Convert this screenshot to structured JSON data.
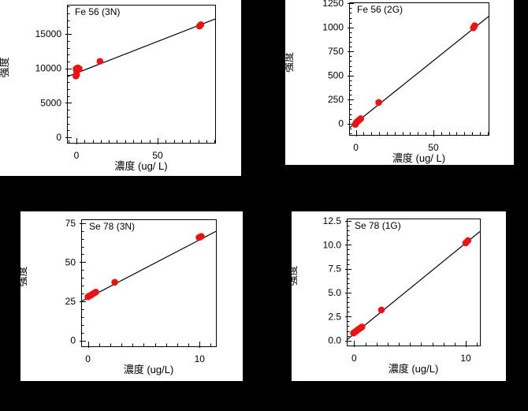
{
  "window": {
    "background": "#000000",
    "panel_background": "#ffffff"
  },
  "colors": {
    "marker": "#ee1111",
    "fit_line": "#000000",
    "frame": "#000000",
    "text": "#000000"
  },
  "chart_data": [
    {
      "id": "fe56-3n",
      "type": "scatter",
      "title": "Fe 56 (3N)",
      "xlabel": "濃度 (ug/ L)",
      "ylabel": "強度",
      "xlim": [
        -5.8,
        85.4
      ],
      "ylim": [
        -800,
        19250
      ],
      "x_major": [
        0,
        50
      ],
      "x_major_labels": [
        "0",
        "50"
      ],
      "x_minor_step": 5,
      "y_major": [
        0,
        5000,
        10000,
        15000
      ],
      "y_major_labels": [
        "0",
        "5000",
        "10000",
        "15000"
      ],
      "y_minor_step": 1000,
      "grid": false,
      "legend": "none",
      "points": [
        [
          -0.3,
          8900
        ],
        [
          0.1,
          9050
        ],
        [
          0.2,
          9560
        ],
        [
          -0.2,
          9930
        ],
        [
          0.3,
          10000
        ],
        [
          0.9,
          10080
        ],
        [
          1.7,
          9960
        ],
        [
          14.5,
          11030
        ],
        [
          75.8,
          16150
        ],
        [
          76.6,
          16350
        ]
      ],
      "fit_line": {
        "slope": 92,
        "intercept": 9320
      }
    },
    {
      "id": "fe56-2g",
      "type": "scatter",
      "title": "Fe 56 (2G)",
      "xlabel": "濃度 (ug/ L)",
      "ylabel": "強度",
      "xlim": [
        -4.4,
        85.6
      ],
      "ylim": [
        -117,
        1260
      ],
      "x_major": [
        0,
        50
      ],
      "x_major_labels": [
        "0",
        "50"
      ],
      "x_minor_step": 5,
      "y_major": [
        0,
        250,
        500,
        750,
        1000,
        1250
      ],
      "y_major_labels": [
        "0",
        "250",
        "500",
        "750",
        "1000",
        "1250"
      ],
      "y_minor_step": 50,
      "grid": false,
      "legend": "none",
      "points": [
        [
          -0.4,
          -8
        ],
        [
          0,
          4
        ],
        [
          0.3,
          12
        ],
        [
          0.8,
          20
        ],
        [
          1.5,
          30
        ],
        [
          2.3,
          40
        ],
        [
          3.1,
          52
        ],
        [
          14.7,
          220
        ],
        [
          75.8,
          995
        ],
        [
          76.6,
          1018
        ]
      ],
      "fit_line": {
        "slope": 12.9,
        "intercept": 9.5
      }
    },
    {
      "id": "se78-3n",
      "type": "scatter",
      "title": "Se 78 (3N)",
      "xlabel": "濃度 (ug/L)",
      "ylabel": "強度",
      "xlim": [
        -0.61,
        11.46
      ],
      "ylim": [
        -3.7,
        77.4
      ],
      "x_major": [
        0,
        10
      ],
      "x_major_labels": [
        "0",
        "10"
      ],
      "x_minor_step": 1,
      "y_major": [
        0,
        25,
        50,
        75
      ],
      "y_major_labels": [
        "0",
        "25",
        "50",
        "75"
      ],
      "y_minor_step": 5,
      "grid": false,
      "legend": "none",
      "points": [
        [
          0,
          27.9
        ],
        [
          0.1,
          28.4
        ],
        [
          0.25,
          28.9
        ],
        [
          0.4,
          29.6
        ],
        [
          0.55,
          30.3
        ],
        [
          0.7,
          30.9
        ],
        [
          2.4,
          37.2
        ],
        [
          9.95,
          65.8
        ],
        [
          10.15,
          66.5
        ]
      ],
      "fit_line": {
        "slope": 3.71,
        "intercept": 27.2
      }
    },
    {
      "id": "se78-1g",
      "type": "scatter",
      "title": "Se 78 (1G)",
      "xlabel": "濃度 (ug/L)",
      "ylabel": "強度",
      "xlim": [
        -0.66,
        11.27
      ],
      "ylim": [
        -0.52,
        12.75
      ],
      "x_major": [
        0,
        10
      ],
      "x_major_labels": [
        "0",
        "10"
      ],
      "x_minor_step": 1,
      "y_major": [
        0,
        2.5,
        5,
        7.5,
        10,
        12.5
      ],
      "y_major_labels": [
        "0.0",
        "2.5",
        "5.0",
        "7.5",
        "10.0",
        "12.5"
      ],
      "y_minor_step": 0.5,
      "grid": false,
      "legend": "none",
      "points": [
        [
          -0.05,
          0.78
        ],
        [
          0.1,
          0.92
        ],
        [
          0.25,
          1.05
        ],
        [
          0.4,
          1.18
        ],
        [
          0.55,
          1.3
        ],
        [
          0.7,
          1.42
        ],
        [
          2.45,
          3.2
        ],
        [
          10,
          10.2
        ],
        [
          10.2,
          10.45
        ]
      ],
      "fit_line": {
        "slope": 0.95,
        "intercept": 0.69
      }
    }
  ]
}
